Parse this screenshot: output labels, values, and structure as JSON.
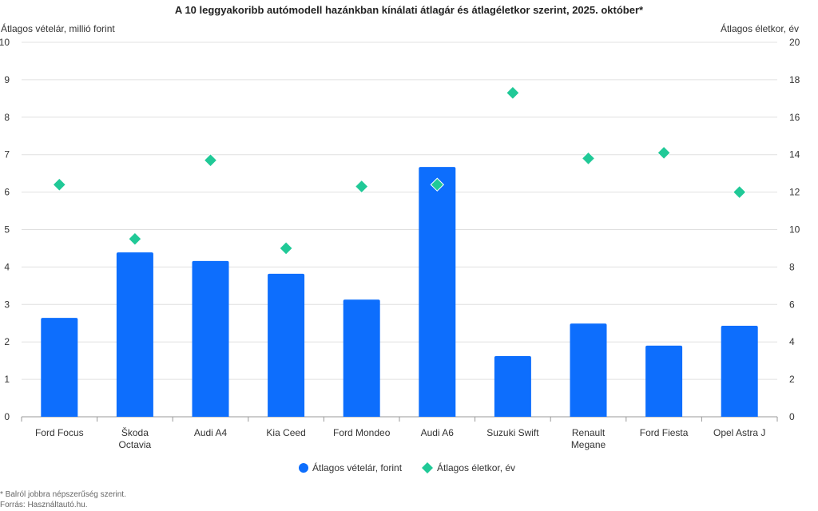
{
  "chart_data": {
    "type": "bar+scatter",
    "title": "A 10 leggyakoribb autómodell hazánkban kínálati átlagár és átlagéletkor szerint, 2025. október*",
    "ylabel": "Átlagos vételár, millió forint",
    "y2label": "Átlagos életkor, év",
    "ylim": [
      0,
      10
    ],
    "y2lim": [
      0,
      20
    ],
    "yticks": [
      "0",
      "1",
      "2",
      "3",
      "4",
      "5",
      "6",
      "7",
      "8",
      "9",
      "10"
    ],
    "y2ticks": [
      "0",
      "2",
      "4",
      "6",
      "8",
      "10",
      "12",
      "14",
      "16",
      "18",
      "20"
    ],
    "grid": true,
    "legend_position": "bottom",
    "categories": [
      [
        "Ford Focus"
      ],
      [
        "Škoda",
        "Octavia"
      ],
      [
        "Audi A4"
      ],
      [
        "Kia Ceed"
      ],
      [
        "Ford Mondeo"
      ],
      [
        "Audi A6"
      ],
      [
        "Suzuki Swift"
      ],
      [
        "Renault",
        "Megane"
      ],
      [
        "Ford Fiesta"
      ],
      [
        "Opel Astra J"
      ]
    ],
    "series": [
      {
        "name": "Átlagos vételár, forint",
        "type": "bar",
        "axis": "left",
        "color": "#0d6efd",
        "values": [
          2.64,
          4.39,
          4.16,
          3.82,
          3.13,
          6.67,
          1.62,
          2.49,
          1.9,
          2.43
        ]
      },
      {
        "name": "Átlagos életkor, év",
        "type": "scatter",
        "marker": "diamond",
        "axis": "right",
        "color": "#20c997",
        "values": [
          12.4,
          9.5,
          13.7,
          9.0,
          12.3,
          12.4,
          17.3,
          13.8,
          14.1,
          12.0
        ]
      }
    ]
  },
  "footnote": "* Balról jobbra népszerűség szerint.",
  "source": "Forrás: Használtautó.hu."
}
